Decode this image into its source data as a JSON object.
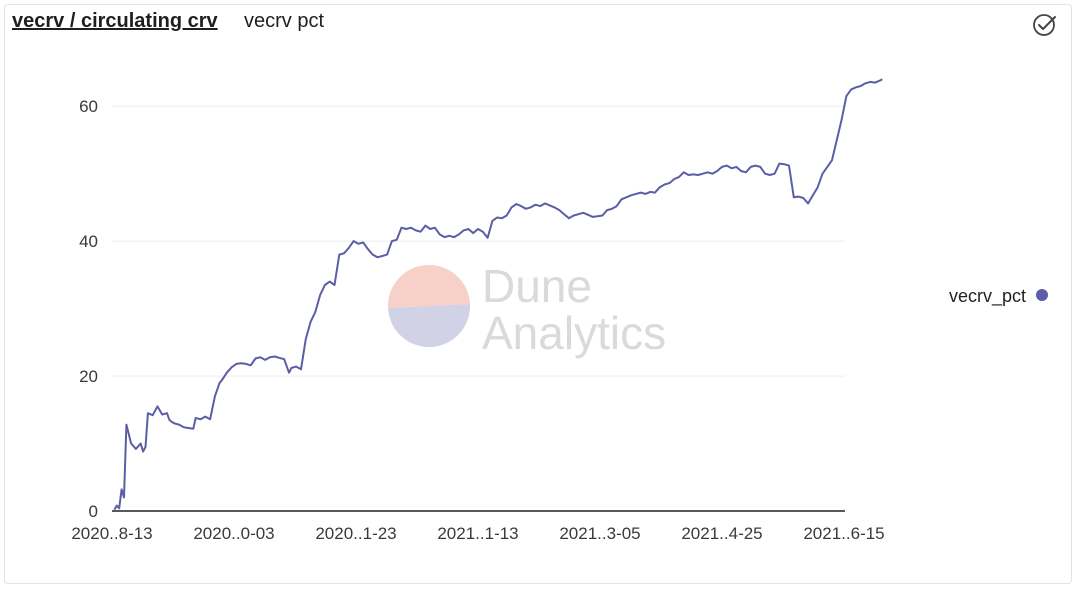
{
  "header": {
    "title": "vecrv / circulating crv",
    "subtitle": "vecrv pct",
    "status_icon": "check-circle-icon"
  },
  "watermark": {
    "line1": "Dune",
    "line2": "Analytics"
  },
  "colors": {
    "series": "#5b5ea6",
    "grid": "#eeeeee",
    "axis": "#222222",
    "watermark_top": "#f7d0c8",
    "watermark_bottom": "#d2d2e6"
  },
  "chart_data": {
    "type": "line",
    "title": "vecrv / circulating crv",
    "xlabel": "",
    "ylabel": "",
    "xlim": [
      "2020-08-13",
      "2021-07-02"
    ],
    "ylim": [
      0,
      67
    ],
    "y_ticks": [
      0,
      20,
      40,
      60
    ],
    "x_ticks": [
      "2020..8-13",
      "2020..0-03",
      "2020..1-23",
      "2021..1-13",
      "2021..3-05",
      "2021..4-25",
      "2021..6-15"
    ],
    "grid": true,
    "legend": "right",
    "series": [
      {
        "name": "vecrv_pct",
        "x": [
          "2020-08-14",
          "2020-08-15",
          "2020-08-16",
          "2020-08-17",
          "2020-08-18",
          "2020-08-19",
          "2020-08-21",
          "2020-08-23",
          "2020-08-25",
          "2020-08-26",
          "2020-08-27",
          "2020-08-28",
          "2020-08-30",
          "2020-09-01",
          "2020-09-03",
          "2020-09-05",
          "2020-09-06",
          "2020-09-07",
          "2020-09-08",
          "2020-09-10",
          "2020-09-12",
          "2020-09-14",
          "2020-09-16",
          "2020-09-17",
          "2020-09-19",
          "2020-09-21",
          "2020-09-23",
          "2020-09-25",
          "2020-09-27",
          "2020-09-28",
          "2020-09-30",
          "2020-10-02",
          "2020-10-04",
          "2020-10-06",
          "2020-10-08",
          "2020-10-10",
          "2020-10-12",
          "2020-10-14",
          "2020-10-16",
          "2020-10-18",
          "2020-10-20",
          "2020-10-22",
          "2020-10-24",
          "2020-10-26",
          "2020-10-27",
          "2020-10-29",
          "2020-10-31",
          "2020-11-02",
          "2020-11-04",
          "2020-11-06",
          "2020-11-08",
          "2020-11-10",
          "2020-11-12",
          "2020-11-14",
          "2020-11-16",
          "2020-11-18",
          "2020-11-20",
          "2020-11-22",
          "2020-11-24",
          "2020-11-26",
          "2020-11-28",
          "2020-11-30",
          "2020-12-02",
          "2020-12-04",
          "2020-12-06",
          "2020-12-08",
          "2020-12-10",
          "2020-12-12",
          "2020-12-14",
          "2020-12-16",
          "2020-12-18",
          "2020-12-20",
          "2020-12-22",
          "2020-12-24",
          "2020-12-26",
          "2020-12-28",
          "2020-12-30",
          "2021-01-01",
          "2021-01-03",
          "2021-01-05",
          "2021-01-07",
          "2021-01-09",
          "2021-01-11",
          "2021-01-13",
          "2021-01-15",
          "2021-01-17",
          "2021-01-19",
          "2021-01-21",
          "2021-01-23",
          "2021-01-25",
          "2021-01-27",
          "2021-01-29",
          "2021-01-31",
          "2021-02-02",
          "2021-02-04",
          "2021-02-06",
          "2021-02-08",
          "2021-02-10",
          "2021-02-12",
          "2021-02-14",
          "2021-02-16",
          "2021-02-18",
          "2021-02-20",
          "2021-02-22",
          "2021-02-24",
          "2021-02-26",
          "2021-02-28",
          "2021-03-02",
          "2021-03-04",
          "2021-03-06",
          "2021-03-08",
          "2021-03-10",
          "2021-03-12",
          "2021-03-14",
          "2021-03-16",
          "2021-03-18",
          "2021-03-20",
          "2021-03-22",
          "2021-03-24",
          "2021-03-26",
          "2021-03-28",
          "2021-03-30",
          "2021-04-01",
          "2021-04-03",
          "2021-04-05",
          "2021-04-07",
          "2021-04-09",
          "2021-04-11",
          "2021-04-13",
          "2021-04-15",
          "2021-04-17",
          "2021-04-19",
          "2021-04-21",
          "2021-04-23",
          "2021-04-25",
          "2021-04-27",
          "2021-04-29",
          "2021-05-01",
          "2021-05-03",
          "2021-05-05",
          "2021-05-07",
          "2021-05-09",
          "2021-05-11",
          "2021-05-13",
          "2021-05-15",
          "2021-05-17",
          "2021-05-19",
          "2021-05-21",
          "2021-05-23",
          "2021-05-25",
          "2021-05-27",
          "2021-05-29",
          "2021-05-31",
          "2021-06-02",
          "2021-06-04",
          "2021-06-06",
          "2021-06-08",
          "2021-06-10",
          "2021-06-12",
          "2021-06-14",
          "2021-06-16",
          "2021-06-18",
          "2021-06-20",
          "2021-06-22",
          "2021-06-24",
          "2021-06-26",
          "2021-06-28",
          "2021-06-30",
          "2021-07-01"
        ],
        "y": [
          0.2,
          0.8,
          0.4,
          3.2,
          2.0,
          12.8,
          10.0,
          9.2,
          10.0,
          8.8,
          9.5,
          14.5,
          14.2,
          15.5,
          14.3,
          14.5,
          13.5,
          13.2,
          13.0,
          12.8,
          12.4,
          12.3,
          12.2,
          13.8,
          13.6,
          14.0,
          13.6,
          17.0,
          19.0,
          19.4,
          20.5,
          21.3,
          21.8,
          21.9,
          21.8,
          21.6,
          22.6,
          22.8,
          22.4,
          22.8,
          22.9,
          22.7,
          22.5,
          20.5,
          21.2,
          21.4,
          21.0,
          25.5,
          28.0,
          29.5,
          32.0,
          33.5,
          34.0,
          33.5,
          38.0,
          38.2,
          39.0,
          40.0,
          39.6,
          39.8,
          38.8,
          38.0,
          37.6,
          37.8,
          38.0,
          40.0,
          40.2,
          42.0,
          41.8,
          42.0,
          41.6,
          41.4,
          42.3,
          41.8,
          42.0,
          41.0,
          40.6,
          40.8,
          40.6,
          41.0,
          41.6,
          41.8,
          41.2,
          41.8,
          41.4,
          40.5,
          43.0,
          43.5,
          43.4,
          43.8,
          45.0,
          45.5,
          45.2,
          44.8,
          45.0,
          45.4,
          45.2,
          45.6,
          45.3,
          45.0,
          44.6,
          44.0,
          43.4,
          43.8,
          44.0,
          44.2,
          43.9,
          43.6,
          43.7,
          43.8,
          44.6,
          44.8,
          45.2,
          46.2,
          46.5,
          46.8,
          47.0,
          47.2,
          47.0,
          47.3,
          47.2,
          48.0,
          48.4,
          48.6,
          49.2,
          49.5,
          50.2,
          49.8,
          49.9,
          49.8,
          50.0,
          50.2,
          50.0,
          50.4,
          51.0,
          51.2,
          50.8,
          51.0,
          50.4,
          50.2,
          51.0,
          51.2,
          51.0,
          50.0,
          49.8,
          50.0,
          51.5,
          51.4,
          51.2,
          46.5,
          46.6,
          46.4,
          45.6,
          46.8,
          48.0,
          50.0,
          51.0,
          52.0,
          55.0,
          58.0,
          61.5,
          62.5,
          62.8,
          63.0,
          63.4,
          63.6,
          63.5,
          63.8,
          64.0
        ]
      }
    ]
  }
}
